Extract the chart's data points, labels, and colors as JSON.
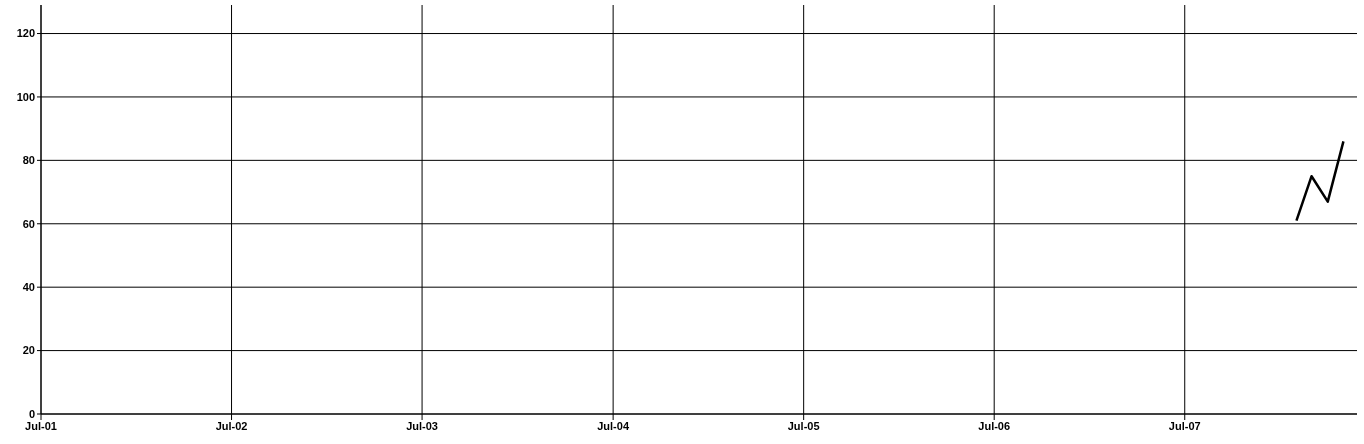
{
  "chart_data": {
    "type": "line",
    "x": [
      "2008-01-31",
      "2008-02-29",
      "2008-03-31",
      "2008-04-30"
    ],
    "series": [
      {
        "color": "#000000",
        "values": [
          61,
          75,
          67,
          86
        ]
      }
    ],
    "xlim": [
      "2001-07-01",
      "2008-05-26"
    ],
    "xticks": [
      {
        "value": "2001-07-01",
        "label": "Jul-01"
      },
      {
        "value": "2002-07-01",
        "label": "Jul-02"
      },
      {
        "value": "2003-07-01",
        "label": "Jul-03"
      },
      {
        "value": "2004-07-01",
        "label": "Jul-04"
      },
      {
        "value": "2005-07-01",
        "label": "Jul-05"
      },
      {
        "value": "2006-07-01",
        "label": "Jul-06"
      },
      {
        "value": "2007-07-01",
        "label": "Jul-07"
      }
    ],
    "ylim": [
      0,
      129
    ],
    "yticks": [
      0,
      20,
      40,
      60,
      80,
      100,
      120
    ],
    "grid": true,
    "marker": "none",
    "line_style": "solid"
  }
}
